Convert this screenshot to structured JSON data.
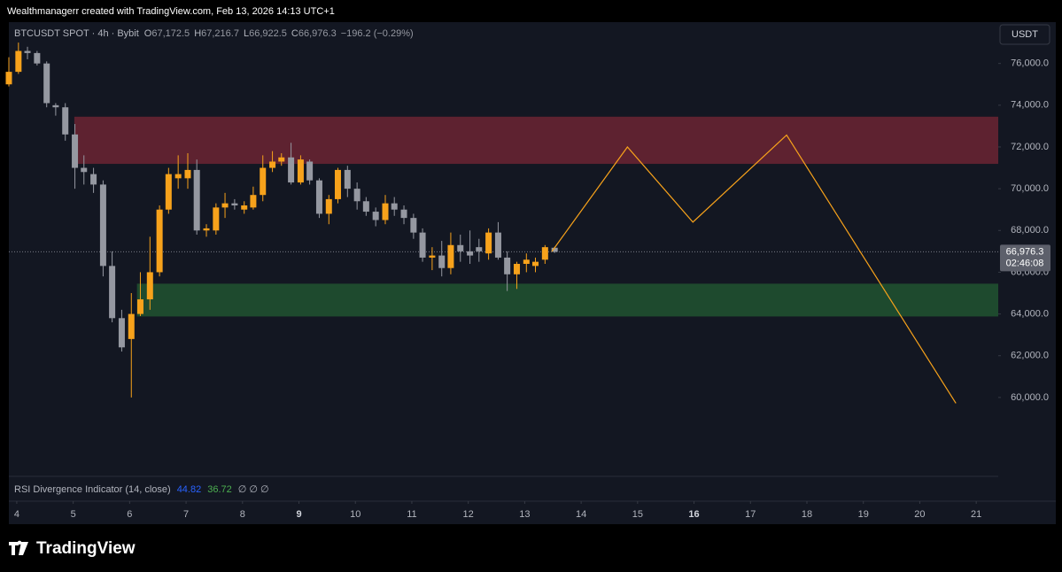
{
  "header": "Wealthmanagerr created with TradingView.com, Feb 13, 2026 14:13 UTC+1",
  "chart_data": {
    "type": "candlestick",
    "symbol": "BTCUSDT SPOT · 4h · Bybit",
    "ohlc_legend": [
      {
        "key": "O",
        "label": "67,172.5"
      },
      {
        "key": "H",
        "label": "67,216.7"
      },
      {
        "key": "L",
        "label": "66,922.5"
      },
      {
        "key": "C",
        "label": "66,976.3"
      }
    ],
    "change": "−196.2 (−0.29%)",
    "currency": "USDT",
    "up_color": "#f7a21b",
    "down_color": "#9598a1",
    "x": [
      3.86,
      4.03,
      4.19,
      4.36,
      4.53,
      4.69,
      4.86,
      5.03,
      5.19,
      5.36,
      5.53,
      5.69,
      5.86,
      6.03,
      6.19,
      6.36,
      6.53,
      6.69,
      6.86,
      7.03,
      7.19,
      7.36,
      7.53,
      7.69,
      7.86,
      8.03,
      8.19,
      8.36,
      8.53,
      8.69,
      8.86,
      9.03,
      9.19,
      9.36,
      9.53,
      9.69,
      9.86,
      10.03,
      10.19,
      10.36,
      10.53,
      10.69,
      10.86,
      11.03,
      11.19,
      11.36,
      11.53,
      11.69,
      11.86,
      12.03,
      12.19,
      12.36,
      12.53,
      12.69,
      12.86,
      13.03,
      13.19,
      13.36,
      13.53
    ],
    "open": [
      75000,
      75600,
      76600,
      76500,
      76000,
      74000,
      73900,
      72600,
      71000,
      70700,
      70200,
      66300,
      63800,
      62800,
      64000,
      64700,
      66000,
      69000,
      70500,
      70500,
      70900,
      68000,
      68000,
      69100,
      69300,
      69000,
      69100,
      69700,
      71000,
      71300,
      71500,
      70300,
      71300,
      70400,
      68800,
      69500,
      70900,
      70000,
      69400,
      68900,
      68500,
      69300,
      69000,
      68600,
      67900,
      66700,
      66800,
      66200,
      67300,
      67000,
      67200,
      66900,
      67900,
      66700,
      65900,
      66400,
      66300,
      66600,
      67172.5
    ],
    "high": [
      76300,
      77000,
      76800,
      76600,
      76100,
      74100,
      74100,
      73100,
      71600,
      71000,
      70400,
      67000,
      64200,
      65000,
      66000,
      67700,
      69200,
      71000,
      71600,
      71700,
      71400,
      68300,
      69300,
      69800,
      69500,
      69400,
      70100,
      71600,
      71800,
      71700,
      72200,
      71600,
      71400,
      70500,
      69700,
      71000,
      71100,
      70300,
      69600,
      69100,
      69700,
      69600,
      69200,
      68800,
      68100,
      67200,
      67500,
      67900,
      67800,
      68000,
      67600,
      68100,
      68400,
      67000,
      66500,
      66900,
      66700,
      67300,
      67216.7
    ],
    "low": [
      74900,
      75500,
      76200,
      75900,
      73900,
      73500,
      72300,
      70000,
      70200,
      69800,
      65800,
      63600,
      62200,
      60000,
      63900,
      64200,
      65800,
      68800,
      70000,
      70000,
      67800,
      67700,
      67800,
      68600,
      69000,
      68800,
      69000,
      69400,
      70800,
      71100,
      70200,
      70200,
      70200,
      68600,
      68300,
      69300,
      69600,
      69000,
      68700,
      68200,
      68300,
      68700,
      68300,
      67600,
      66500,
      66100,
      65800,
      65900,
      66500,
      66400,
      66500,
      66600,
      66600,
      65100,
      65200,
      66000,
      66000,
      66400,
      66922.5
    ],
    "close": [
      75600,
      76600,
      76500,
      76000,
      74100,
      73900,
      72600,
      71000,
      70800,
      70200,
      66300,
      63800,
      62400,
      64000,
      64700,
      66000,
      69000,
      70700,
      70700,
      70900,
      68000,
      68100,
      69100,
      69300,
      69200,
      69200,
      69700,
      71000,
      71300,
      71500,
      70300,
      71400,
      70400,
      68800,
      69500,
      70900,
      70000,
      69400,
      68900,
      68500,
      69300,
      69000,
      68600,
      67900,
      66700,
      66800,
      66200,
      67300,
      67000,
      66800,
      67000,
      67900,
      66700,
      65900,
      66400,
      66600,
      66500,
      67200,
      66976.3
    ],
    "zones": [
      {
        "color": "#5e2230",
        "x_start": 5.02,
        "top": 73450,
        "bottom": 71190
      },
      {
        "color": "#1e4a2e",
        "x_start": 6.13,
        "top": 65450,
        "bottom": 63880
      }
    ],
    "forecast": {
      "color": "#f7a21b",
      "x": [
        13.48,
        14.82,
        15.98,
        17.64,
        20.64
      ],
      "y": [
        66990,
        72000,
        68400,
        72570,
        59720
      ]
    },
    "last_price": {
      "value": 66976.3,
      "label": "66,976.3"
    },
    "countdown": "02:46:08",
    "xlim": [
      3.86,
      21.39
    ],
    "ylim": [
      56220,
      77980
    ],
    "xticks": [
      4,
      5,
      6,
      7,
      8,
      9,
      10,
      11,
      12,
      13,
      14,
      15,
      16,
      17,
      18,
      19,
      20,
      21
    ],
    "bold_xticks": [
      9,
      16
    ],
    "yticks": [
      {
        "value": 60000,
        "label": "60,000.0"
      },
      {
        "value": 62000,
        "label": "62,000.0"
      },
      {
        "value": 64000,
        "label": "64,000.0"
      },
      {
        "value": 66000,
        "label": "66,000.0"
      },
      {
        "value": 68000,
        "label": "68,000.0"
      },
      {
        "value": 70000,
        "label": "70,000.0"
      },
      {
        "value": 72000,
        "label": "72,000.0"
      },
      {
        "value": 74000,
        "label": "74,000.0"
      },
      {
        "value": 76000,
        "label": "76,000.0"
      }
    ],
    "indicator": {
      "name": "RSI Divergence Indicator (14, close)",
      "values": [
        "44.82",
        "36.72"
      ],
      "colors": [
        "#2962ff",
        "#4caf50"
      ],
      "extras": "∅ ∅ ∅"
    }
  },
  "logo": "TradingView"
}
